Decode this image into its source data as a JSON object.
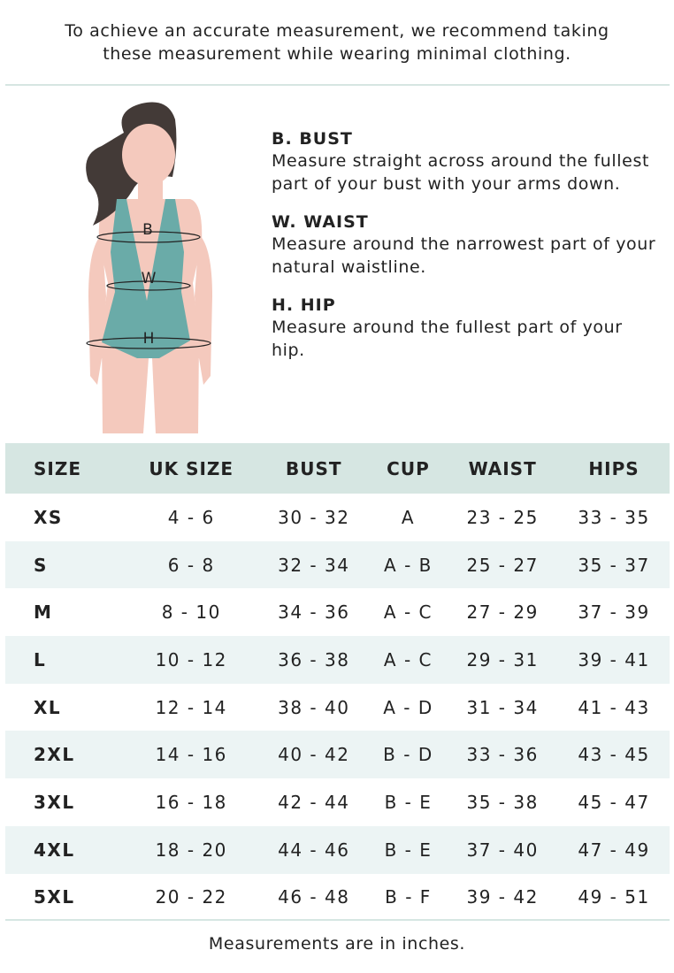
{
  "intro": [
    "To achieve an accurate measurement, we recommend taking",
    "these measurement while wearing minimal clothing."
  ],
  "figure_labels": {
    "bust": "B",
    "waist": "W",
    "hip": "H"
  },
  "colors": {
    "header_bg": "#d6e6e2",
    "alt_row_bg": "#ecf4f4",
    "swimsuit": "#6aaba8",
    "skin": "#f4c9bd",
    "hair": "#433a37"
  },
  "definitions": [
    {
      "title": "B. BUST",
      "text": "Measure straight across around the fullest part of your bust with your arms down."
    },
    {
      "title": "W. WAIST",
      "text": "Measure around the narrowest part of your natural waistline."
    },
    {
      "title": "H. HIP",
      "text": "Measure around the fullest part of your hip."
    }
  ],
  "table": {
    "headers": [
      "SIZE",
      "UK SIZE",
      "BUST",
      "CUP",
      "WAIST",
      "HIPS"
    ],
    "rows": [
      [
        "XS",
        "4 - 6",
        "30 - 32",
        "A",
        "23 - 25",
        "33 - 35"
      ],
      [
        "S",
        "6 - 8",
        "32 - 34",
        "A - B",
        "25 - 27",
        "35 - 37"
      ],
      [
        "M",
        "8 - 10",
        "34 - 36",
        "A - C",
        "27 - 29",
        "37 - 39"
      ],
      [
        "L",
        "10 - 12",
        "36 - 38",
        "A - C",
        "29 - 31",
        "39 - 41"
      ],
      [
        "XL",
        "12 - 14",
        "38 - 40",
        "A - D",
        "31 - 34",
        "41 - 43"
      ],
      [
        "2XL",
        "14 - 16",
        "40 - 42",
        "B - D",
        "33 - 36",
        "43 - 45"
      ],
      [
        "3XL",
        "16 - 18",
        "42 - 44",
        "B - E",
        "35 - 38",
        "45 - 47"
      ],
      [
        "4XL",
        "18 - 20",
        "44 - 46",
        "B - E",
        "37 - 40",
        "47 - 49"
      ],
      [
        "5XL",
        "20 - 22",
        "46 - 48",
        "B - F",
        "39 - 42",
        "49 - 51"
      ]
    ]
  },
  "footer": "Measurements are in inches."
}
